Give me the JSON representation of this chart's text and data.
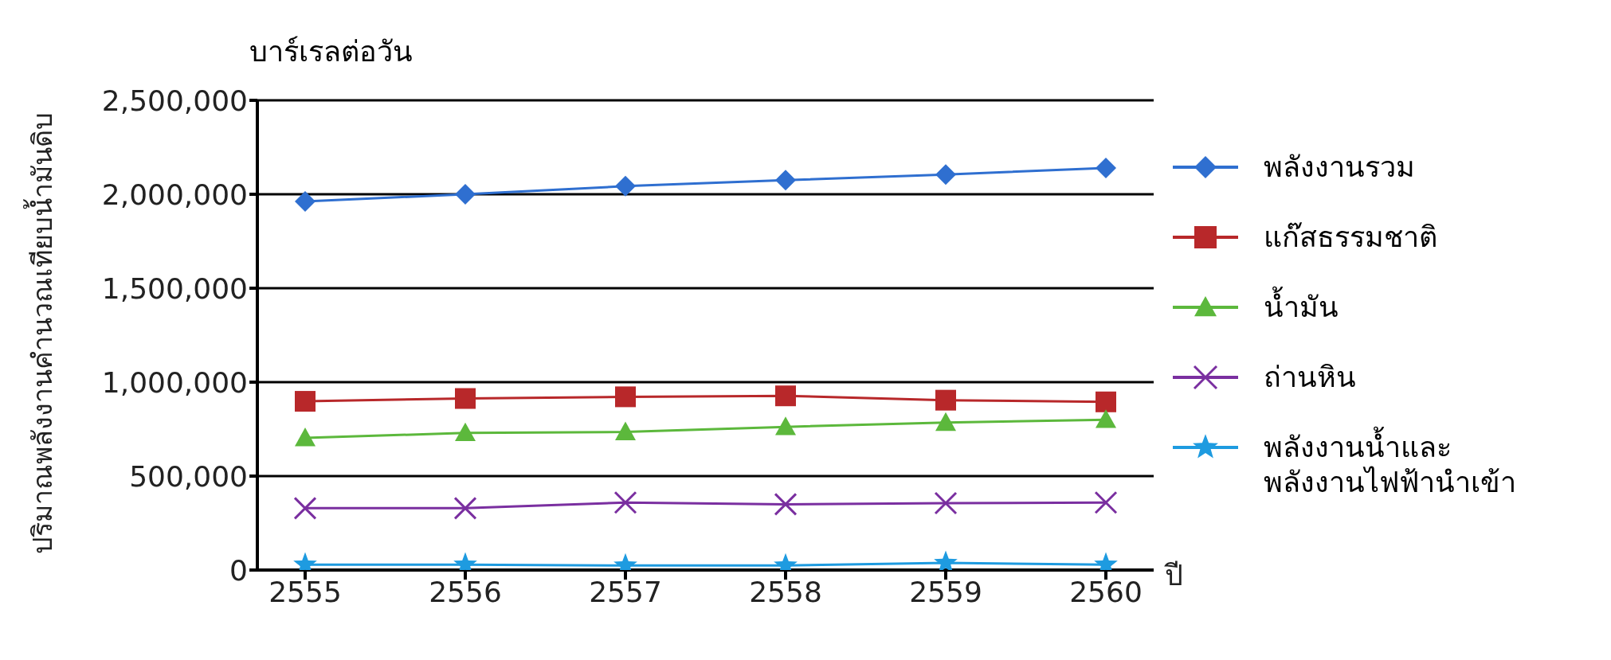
{
  "chart_data": {
    "type": "line",
    "ylabel": "ปริมาณพลังงานคำนวณเทียบน้ำมันดิบ",
    "xlabel": "ปี",
    "annotations": [
      "บาร์เรลต่อวัน"
    ],
    "categories": [
      "2555",
      "2556",
      "2557",
      "2558",
      "2559",
      "2560"
    ],
    "ylim": [
      0,
      2500000
    ],
    "yticks": [
      {
        "value": 0,
        "label": "0"
      },
      {
        "value": 500000,
        "label": "500,000"
      },
      {
        "value": 1000000,
        "label": "1,000,000"
      },
      {
        "value": 1500000,
        "label": "1,500,000"
      },
      {
        "value": 2000000,
        "label": "2,000,000"
      },
      {
        "value": 2500000,
        "label": "2,500,000"
      }
    ],
    "grid": "y",
    "legend": "right",
    "series": [
      {
        "name": "พลังงานรวม",
        "color": "#2f6fd0",
        "marker": "diamond",
        "values": [
          1962000,
          2000000,
          2043000,
          2075000,
          2105000,
          2140000
        ]
      },
      {
        "name": "แก๊สธรรมชาติ",
        "color": "#b8282a",
        "marker": "square",
        "values": [
          898000,
          913000,
          922000,
          927000,
          904000,
          895000
        ]
      },
      {
        "name": "น้ำมัน",
        "color": "#5cb83c",
        "marker": "triangle",
        "values": [
          703000,
          730000,
          735000,
          762000,
          785000,
          800000
        ]
      },
      {
        "name": "ถ่านหิน",
        "color": "#7a2fa0",
        "marker": "cross",
        "values": [
          329000,
          329000,
          359000,
          350000,
          356000,
          359000
        ]
      },
      {
        "name": "พลังงานน้ำและพลังงานไฟฟ้านำเข้า",
        "color": "#1e9be0",
        "marker": "star",
        "values": [
          29000,
          29000,
          24000,
          24000,
          38000,
          29000
        ]
      }
    ]
  }
}
